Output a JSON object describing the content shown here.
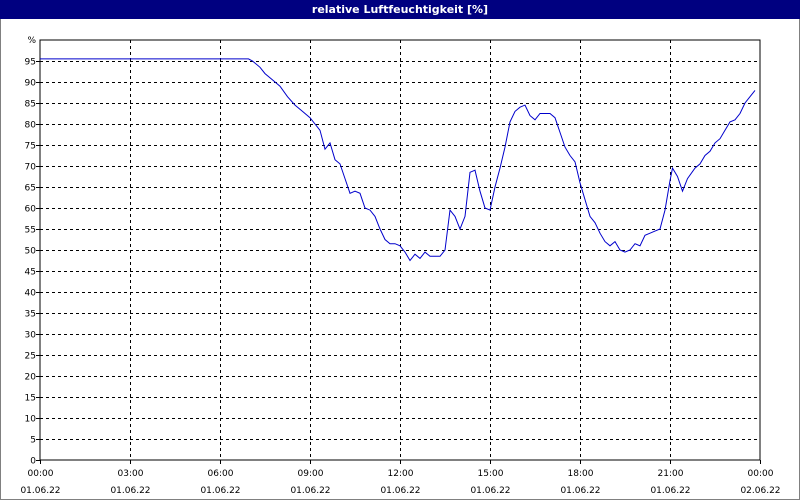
{
  "window": {
    "title": "relative Luftfeuchtigkeit [%]"
  },
  "colors": {
    "title_bar": "#000080",
    "series": "#0000cc",
    "grid": "#000000"
  },
  "chart_data": {
    "type": "line",
    "title": "relative Luftfeuchtigkeit [%]",
    "y_unit_label": "%",
    "ylim": [
      0,
      100
    ],
    "y_ticks": [
      0,
      5,
      10,
      15,
      20,
      25,
      30,
      35,
      40,
      45,
      50,
      55,
      60,
      65,
      70,
      75,
      80,
      85,
      90,
      95
    ],
    "xlim": [
      "01.06.22 00:00",
      "02.06.22 00:00"
    ],
    "x_ticks": [
      {
        "time": "00:00",
        "date": "01.06.22"
      },
      {
        "time": "03:00",
        "date": "01.06.22"
      },
      {
        "time": "06:00",
        "date": "01.06.22"
      },
      {
        "time": "09:00",
        "date": "01.06.22"
      },
      {
        "time": "12:00",
        "date": "01.06.22"
      },
      {
        "time": "15:00",
        "date": "01.06.22"
      },
      {
        "time": "18:00",
        "date": "01.06.22"
      },
      {
        "time": "21:00",
        "date": "01.06.22"
      },
      {
        "time": "00:00",
        "date": "02.06.22"
      }
    ],
    "grid": true,
    "series": [
      {
        "points": [
          [
            "00:00",
            95.5
          ],
          [
            "06:57",
            95.5
          ],
          [
            "07:05",
            95.0
          ],
          [
            "07:20",
            93.5
          ],
          [
            "07:30",
            92.0
          ],
          [
            "07:45",
            90.5
          ],
          [
            "08:00",
            89.0
          ],
          [
            "08:15",
            86.5
          ],
          [
            "08:30",
            84.5
          ],
          [
            "08:45",
            83.0
          ],
          [
            "09:00",
            81.5
          ],
          [
            "09:10",
            80.0
          ],
          [
            "09:20",
            78.5
          ],
          [
            "09:30",
            74.0
          ],
          [
            "09:40",
            75.5
          ],
          [
            "09:50",
            71.5
          ],
          [
            "10:00",
            70.5
          ],
          [
            "10:10",
            67.0
          ],
          [
            "10:20",
            63.5
          ],
          [
            "10:30",
            64.0
          ],
          [
            "10:40",
            63.5
          ],
          [
            "10:50",
            60.0
          ],
          [
            "11:00",
            59.5
          ],
          [
            "11:10",
            58.0
          ],
          [
            "11:20",
            55.0
          ],
          [
            "11:30",
            52.5
          ],
          [
            "11:40",
            51.5
          ],
          [
            "11:50",
            51.5
          ],
          [
            "12:00",
            51.0
          ],
          [
            "12:10",
            49.5
          ],
          [
            "12:20",
            47.5
          ],
          [
            "12:30",
            49.0
          ],
          [
            "12:40",
            48.0
          ],
          [
            "12:50",
            49.5
          ],
          [
            "13:00",
            48.5
          ],
          [
            "13:10",
            48.5
          ],
          [
            "13:20",
            48.5
          ],
          [
            "13:30",
            50.0
          ],
          [
            "13:40",
            59.5
          ],
          [
            "13:50",
            58.0
          ],
          [
            "14:00",
            55.0
          ],
          [
            "14:10",
            58.0
          ],
          [
            "14:20",
            68.5
          ],
          [
            "14:30",
            69.0
          ],
          [
            "14:40",
            64.0
          ],
          [
            "14:50",
            60.0
          ],
          [
            "15:00",
            59.5
          ],
          [
            "15:10",
            65.0
          ],
          [
            "15:20",
            69.5
          ],
          [
            "15:30",
            74.5
          ],
          [
            "15:40",
            80.5
          ],
          [
            "15:50",
            83.0
          ],
          [
            "16:00",
            84.0
          ],
          [
            "16:10",
            84.5
          ],
          [
            "16:20",
            82.0
          ],
          [
            "16:30",
            81.0
          ],
          [
            "16:40",
            82.5
          ],
          [
            "16:50",
            82.5
          ],
          [
            "17:00",
            82.5
          ],
          [
            "17:10",
            81.5
          ],
          [
            "17:20",
            78.0
          ],
          [
            "17:30",
            74.5
          ],
          [
            "17:40",
            72.5
          ],
          [
            "17:50",
            71.0
          ],
          [
            "18:00",
            66.0
          ],
          [
            "18:10",
            62.0
          ],
          [
            "18:20",
            58.0
          ],
          [
            "18:30",
            56.5
          ],
          [
            "18:40",
            54.0
          ],
          [
            "18:50",
            52.0
          ],
          [
            "19:00",
            51.0
          ],
          [
            "19:10",
            52.0
          ],
          [
            "19:20",
            50.0
          ],
          [
            "19:30",
            49.5
          ],
          [
            "19:40",
            50.0
          ],
          [
            "19:50",
            51.5
          ],
          [
            "20:00",
            51.0
          ],
          [
            "20:10",
            53.5
          ],
          [
            "20:20",
            54.0
          ],
          [
            "20:30",
            54.5
          ],
          [
            "20:40",
            55.0
          ],
          [
            "20:50",
            59.5
          ],
          [
            "21:00",
            66.5
          ],
          [
            "21:05",
            69.5
          ],
          [
            "21:15",
            67.5
          ],
          [
            "21:25",
            64.0
          ],
          [
            "21:35",
            67.0
          ],
          [
            "21:50",
            69.5
          ],
          [
            "22:00",
            70.5
          ],
          [
            "22:10",
            72.5
          ],
          [
            "22:20",
            73.5
          ],
          [
            "22:30",
            75.5
          ],
          [
            "22:40",
            76.5
          ],
          [
            "22:50",
            78.5
          ],
          [
            "23:00",
            80.5
          ],
          [
            "23:10",
            81.0
          ],
          [
            "23:20",
            82.5
          ],
          [
            "23:30",
            85.0
          ],
          [
            "23:40",
            86.5
          ],
          [
            "23:50",
            88.0
          ]
        ]
      }
    ]
  }
}
